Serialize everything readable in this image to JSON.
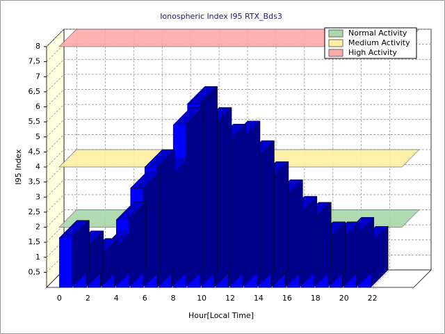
{
  "chart_data": {
    "type": "bar3d",
    "title": "Ionospheric Index I95 RTX_Bds3",
    "x_label": "Hour[Local Time]",
    "y_label": "I95 Index",
    "x": [
      0,
      1,
      2,
      3,
      4,
      5,
      6,
      7,
      8,
      9,
      10,
      11,
      12,
      13,
      14,
      15,
      16,
      17,
      18,
      19,
      20,
      21
    ],
    "values": [
      1.65,
      1.3,
      1.05,
      1.3,
      2.25,
      3.3,
      4.0,
      3.7,
      5.4,
      6.1,
      5.4,
      4.85,
      4.95,
      4.3,
      3.6,
      3.0,
      2.45,
      2.25,
      1.6,
      1.6,
      1.75,
      1.45
    ],
    "color": "#0000ff",
    "xlim": [
      -0.9,
      24.9
    ],
    "ylim": [
      0,
      8
    ],
    "xticks": [
      0,
      2,
      4,
      6,
      8,
      10,
      12,
      14,
      16,
      18,
      20,
      22
    ],
    "yticks": [
      {
        "value": 0.5,
        "label": "0,5"
      },
      1,
      {
        "value": 1.5,
        "label": "1,5"
      },
      2,
      {
        "value": 2.5,
        "label": "2,5"
      },
      3,
      {
        "value": 3.5,
        "label": "3,5"
      },
      4,
      {
        "value": 4.5,
        "label": "4,5"
      },
      5,
      {
        "value": 5.5,
        "label": "5,5"
      },
      6,
      {
        "value": 6.5,
        "label": "6,5"
      },
      7,
      {
        "value": 7.5,
        "label": "7,5"
      },
      8
    ],
    "grid": true,
    "legend": "top-right",
    "bands": [
      {
        "name": "Normal Activity",
        "color": "#a8d8a8",
        "value": 2
      },
      {
        "name": "Medium Activity",
        "color": "#fff0a0",
        "value": 4
      },
      {
        "name": "High Activity",
        "color": "#ffa8a8",
        "value": 8
      }
    ]
  }
}
